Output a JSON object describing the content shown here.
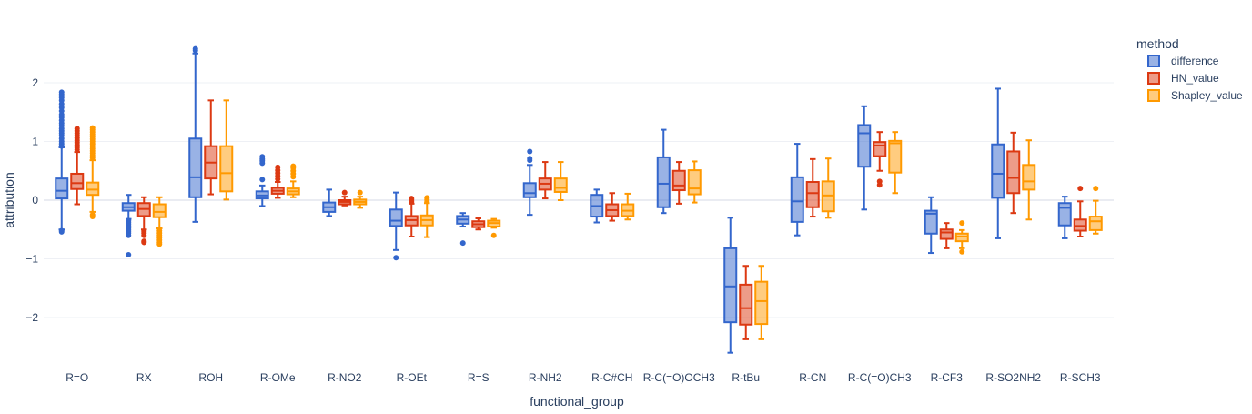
{
  "chart_data": {
    "type": "box",
    "xlabel": "functional_group",
    "ylabel": "attribution",
    "ylim": [
      -2.7,
      2.95
    ],
    "yticks": [
      -2,
      -1,
      0,
      1,
      2
    ],
    "grid": true,
    "legend": {
      "title": "method",
      "placement": "top-right"
    },
    "categories": [
      "R=O",
      "RX",
      "ROH",
      "R-OMe",
      "R-NO2",
      "R-OEt",
      "R=S",
      "R-NH2",
      "R-C#CH",
      "R-C(=O)OCH3",
      "R-tBu",
      "R-CN",
      "R-C(=O)CH3",
      "R-CF3",
      "R-SO2NH2",
      "R-SCH3"
    ],
    "series": [
      {
        "name": "difference",
        "color": "#3366cc",
        "fill": "rgba(51,102,204,0.5)",
        "boxes": [
          {
            "q1": 0.03,
            "median": 0.16,
            "q3": 0.37,
            "lower": -0.5,
            "upper": 0.9,
            "outliers": [
              -0.52,
              -0.54,
              0.92,
              0.96,
              1.0,
              1.05,
              1.1,
              1.14,
              1.18,
              1.22,
              1.27,
              1.31,
              1.36,
              1.41,
              1.46,
              1.52,
              1.58,
              1.64,
              1.7,
              1.75,
              1.8,
              1.84
            ]
          },
          {
            "q1": -0.18,
            "median": -0.12,
            "q3": -0.05,
            "lower": -0.32,
            "upper": 0.09,
            "outliers": [
              -0.35,
              -0.38,
              -0.41,
              -0.44,
              -0.47,
              -0.5,
              -0.53,
              -0.56,
              -0.6,
              -0.93
            ]
          },
          {
            "q1": 0.05,
            "median": 0.39,
            "q3": 1.05,
            "lower": -0.37,
            "upper": 2.5,
            "outliers": [
              2.55,
              2.58
            ]
          },
          {
            "q1": 0.03,
            "median": 0.08,
            "q3": 0.15,
            "lower": -0.1,
            "upper": 0.25,
            "outliers": [
              0.35,
              0.63,
              0.67,
              0.7,
              0.74
            ]
          },
          {
            "q1": -0.2,
            "median": -0.12,
            "q3": -0.04,
            "lower": -0.27,
            "upper": 0.18,
            "outliers": []
          },
          {
            "q1": -0.44,
            "median": -0.35,
            "q3": -0.16,
            "lower": -0.85,
            "upper": 0.13,
            "outliers": [
              -0.98
            ]
          },
          {
            "q1": -0.4,
            "median": -0.33,
            "q3": -0.27,
            "lower": -0.45,
            "upper": -0.22,
            "outliers": [
              -0.73
            ]
          },
          {
            "q1": 0.05,
            "median": 0.12,
            "q3": 0.29,
            "lower": -0.25,
            "upper": 0.6,
            "outliers": [
              0.68,
              0.71,
              0.83
            ]
          },
          {
            "q1": -0.28,
            "median": -0.1,
            "q3": 0.09,
            "lower": -0.38,
            "upper": 0.18,
            "outliers": []
          },
          {
            "q1": -0.12,
            "median": 0.28,
            "q3": 0.73,
            "lower": -0.22,
            "upper": 1.2,
            "outliers": []
          },
          {
            "q1": -2.08,
            "median": -1.47,
            "q3": -0.82,
            "lower": -2.6,
            "upper": -0.3,
            "outliers": []
          },
          {
            "q1": -0.37,
            "median": -0.02,
            "q3": 0.39,
            "lower": -0.6,
            "upper": 0.96,
            "outliers": []
          },
          {
            "q1": 0.57,
            "median": 1.14,
            "q3": 1.28,
            "lower": -0.16,
            "upper": 1.6,
            "outliers": []
          },
          {
            "q1": -0.57,
            "median": -0.23,
            "q3": -0.18,
            "lower": -0.9,
            "upper": 0.05,
            "outliers": []
          },
          {
            "q1": 0.04,
            "median": 0.45,
            "q3": 0.95,
            "lower": -0.65,
            "upper": 1.9,
            "outliers": []
          },
          {
            "q1": -0.43,
            "median": -0.13,
            "q3": -0.05,
            "lower": -0.65,
            "upper": 0.06,
            "outliers": []
          }
        ]
      },
      {
        "name": "HN_value",
        "color": "#dc3912",
        "fill": "rgba(220,57,18,0.5)",
        "boxes": [
          {
            "q1": 0.19,
            "median": 0.29,
            "q3": 0.45,
            "lower": -0.07,
            "upper": 0.82,
            "outliers": [
              0.86,
              0.9,
              0.94,
              0.98,
              1.02,
              1.06,
              1.1,
              1.14,
              1.18,
              1.22
            ]
          },
          {
            "q1": -0.27,
            "median": -0.15,
            "q3": -0.05,
            "lower": -0.5,
            "upper": 0.05,
            "outliers": [
              -0.53,
              -0.56,
              -0.6,
              -0.7,
              -0.72
            ]
          },
          {
            "q1": 0.37,
            "median": 0.64,
            "q3": 0.92,
            "lower": 0.1,
            "upper": 1.7,
            "outliers": []
          },
          {
            "q1": 0.11,
            "median": 0.16,
            "q3": 0.21,
            "lower": 0.04,
            "upper": 0.31,
            "outliers": [
              0.36,
              0.41,
              0.46,
              0.51,
              0.56
            ]
          },
          {
            "q1": -0.07,
            "median": -0.03,
            "q3": 0.0,
            "lower": -0.09,
            "upper": 0.06,
            "outliers": [
              0.13
            ]
          },
          {
            "q1": -0.43,
            "median": -0.34,
            "q3": -0.27,
            "lower": -0.62,
            "upper": -0.06,
            "outliers": [
              -0.03,
              0.0,
              0.03
            ]
          },
          {
            "q1": -0.46,
            "median": -0.41,
            "q3": -0.36,
            "lower": -0.5,
            "upper": -0.31,
            "outliers": []
          },
          {
            "q1": 0.18,
            "median": 0.28,
            "q3": 0.37,
            "lower": 0.03,
            "upper": 0.65,
            "outliers": []
          },
          {
            "q1": -0.27,
            "median": -0.17,
            "q3": -0.07,
            "lower": -0.35,
            "upper": 0.12,
            "outliers": []
          },
          {
            "q1": 0.17,
            "median": 0.25,
            "q3": 0.5,
            "lower": -0.06,
            "upper": 0.65,
            "outliers": []
          },
          {
            "q1": -2.12,
            "median": -1.84,
            "q3": -1.44,
            "lower": -2.37,
            "upper": -1.12,
            "outliers": []
          },
          {
            "q1": -0.12,
            "median": 0.12,
            "q3": 0.31,
            "lower": -0.28,
            "upper": 0.7,
            "outliers": []
          },
          {
            "q1": 0.75,
            "median": 0.93,
            "q3": 0.99,
            "lower": 0.5,
            "upper": 1.16,
            "outliers": [
              0.26,
              0.32
            ]
          },
          {
            "q1": -0.66,
            "median": -0.55,
            "q3": -0.5,
            "lower": -0.82,
            "upper": -0.39,
            "outliers": []
          },
          {
            "q1": 0.12,
            "median": 0.38,
            "q3": 0.83,
            "lower": -0.22,
            "upper": 1.15,
            "outliers": []
          },
          {
            "q1": -0.52,
            "median": -0.44,
            "q3": -0.33,
            "lower": -0.62,
            "upper": -0.02,
            "outliers": [
              0.2
            ]
          }
        ]
      },
      {
        "name": "Shapley_value",
        "color": "#ff9900",
        "fill": "rgba(255,153,0,0.5)",
        "boxes": [
          {
            "q1": 0.09,
            "median": 0.18,
            "q3": 0.3,
            "lower": -0.2,
            "upper": 0.68,
            "outliers": [
              -0.25,
              -0.28,
              0.72,
              0.76,
              0.8,
              0.84,
              0.88,
              0.92,
              0.96,
              1.0,
              1.04,
              1.08,
              1.12,
              1.16,
              1.2,
              1.23
            ]
          },
          {
            "q1": -0.29,
            "median": -0.2,
            "q3": -0.07,
            "lower": -0.48,
            "upper": 0.05,
            "outliers": [
              -0.52,
              -0.56,
              -0.6,
              -0.64,
              -0.68,
              -0.72,
              -0.75
            ]
          },
          {
            "q1": 0.15,
            "median": 0.46,
            "q3": 0.92,
            "lower": 0.01,
            "upper": 1.7,
            "outliers": []
          },
          {
            "q1": 0.1,
            "median": 0.15,
            "q3": 0.2,
            "lower": 0.05,
            "upper": 0.32,
            "outliers": [
              0.4,
              0.45,
              0.5,
              0.55,
              0.58
            ]
          },
          {
            "q1": -0.07,
            "median": -0.03,
            "q3": 0.01,
            "lower": -0.13,
            "upper": 0.06,
            "outliers": [
              0.13
            ]
          },
          {
            "q1": -0.43,
            "median": -0.34,
            "q3": -0.26,
            "lower": -0.63,
            "upper": -0.05,
            "outliers": [
              -0.02,
              0.01,
              0.04
            ]
          },
          {
            "q1": -0.45,
            "median": -0.39,
            "q3": -0.35,
            "lower": -0.47,
            "upper": -0.32,
            "outliers": [
              -0.6
            ]
          },
          {
            "q1": 0.14,
            "median": 0.21,
            "q3": 0.37,
            "lower": 0.0,
            "upper": 0.65,
            "outliers": []
          },
          {
            "q1": -0.27,
            "median": -0.18,
            "q3": -0.07,
            "lower": -0.33,
            "upper": 0.11,
            "outliers": []
          },
          {
            "q1": 0.1,
            "median": 0.2,
            "q3": 0.51,
            "lower": -0.04,
            "upper": 0.66,
            "outliers": []
          },
          {
            "q1": -2.11,
            "median": -1.72,
            "q3": -1.39,
            "lower": -2.37,
            "upper": -1.12,
            "outliers": []
          },
          {
            "q1": -0.19,
            "median": 0.08,
            "q3": 0.32,
            "lower": -0.3,
            "upper": 0.71,
            "outliers": []
          },
          {
            "q1": 0.47,
            "median": 0.97,
            "q3": 1.01,
            "lower": 0.12,
            "upper": 1.16,
            "outliers": []
          },
          {
            "q1": -0.7,
            "median": -0.62,
            "q3": -0.57,
            "lower": -0.82,
            "upper": -0.51,
            "outliers": [
              -0.39,
              -0.88
            ]
          },
          {
            "q1": 0.18,
            "median": 0.32,
            "q3": 0.6,
            "lower": -0.33,
            "upper": 1.02,
            "outliers": []
          },
          {
            "q1": -0.51,
            "median": -0.36,
            "q3": -0.28,
            "lower": -0.57,
            "upper": -0.01,
            "outliers": [
              0.2
            ]
          }
        ]
      }
    ]
  }
}
